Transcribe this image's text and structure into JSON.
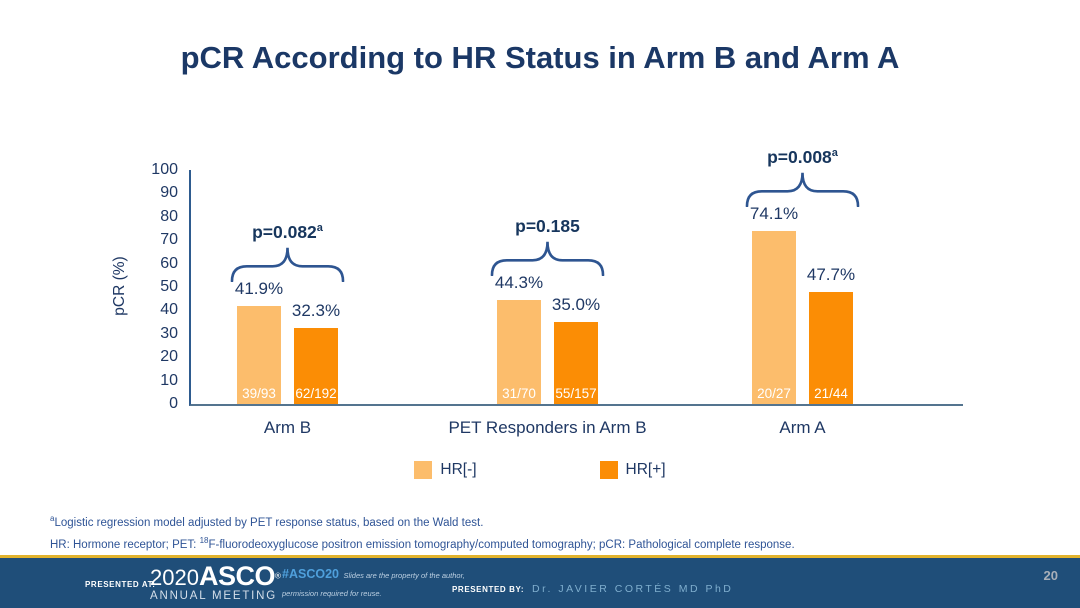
{
  "slide": {
    "title": "pCR According to HR Status in Arm B and Arm A"
  },
  "colors": {
    "accent_navy": "#1F3864",
    "hr_negative_orange": "#FCBD6C",
    "hr_positive_orange": "#FB8D05",
    "footer_blue": "#1F4E79",
    "gold_divider": "#E2B32C",
    "hashtag_blue": "#4FA0DC"
  },
  "chart_data": {
    "type": "bar",
    "title": "pCR According to HR Status in Arm B and Arm A",
    "xlabel": "",
    "ylabel": "pCR (%)",
    "ylim": [
      0,
      100
    ],
    "yticks": [
      0,
      10,
      20,
      30,
      40,
      50,
      60,
      70,
      80,
      90,
      100
    ],
    "grid": false,
    "legend_position": "bottom",
    "categories": [
      "Arm B",
      "PET Responders in Arm B",
      "Arm A"
    ],
    "series": [
      {
        "name": "HR[-]",
        "color": "#FCBD6C",
        "values": [
          41.9,
          44.3,
          74.1
        ],
        "value_labels": [
          "41.9%",
          "44.3%",
          "74.1%"
        ],
        "fractions": [
          "39/93",
          "31/70",
          "20/27"
        ]
      },
      {
        "name": "HR[+]",
        "color": "#FB8D05",
        "values": [
          32.3,
          35.0,
          47.7
        ],
        "value_labels": [
          "32.3%",
          "35.0%",
          "47.7%"
        ],
        "fractions": [
          "62/192",
          "55/157",
          "21/44"
        ]
      }
    ],
    "p_values": [
      {
        "base": "p=0.082",
        "sup": "a"
      },
      {
        "base": "p=0.185",
        "sup": ""
      },
      {
        "base": "p=0.008",
        "sup": "a"
      }
    ]
  },
  "footnotes": [
    {
      "segments": [
        {
          "sup": "a"
        },
        {
          "text": "Logistic regression model adjusted by PET response status, based on the Wald test."
        }
      ]
    },
    {
      "segments": [
        {
          "text": "HR: Hormone receptor; PET: "
        },
        {
          "sup": "18"
        },
        {
          "text": "F-fluorodeoxyglucose positron emission tomography/computed tomography; pCR: Pathological complete response."
        }
      ]
    }
  ],
  "footer": {
    "presented_at_label": "PRESENTED AT:",
    "logo": {
      "year": "2020",
      "org": "ASCO",
      "reg": "®",
      "sub": "ANNUAL MEETING"
    },
    "hashtag": "#ASCO20",
    "disclaimer_line1": "Slides are the property of the author,",
    "disclaimer_line2": "permission required for reuse.",
    "presented_by_label": "PRESENTED BY:",
    "presenter": "Dr. JAVIER CORTÉS MD PhD",
    "page_number": "20"
  }
}
